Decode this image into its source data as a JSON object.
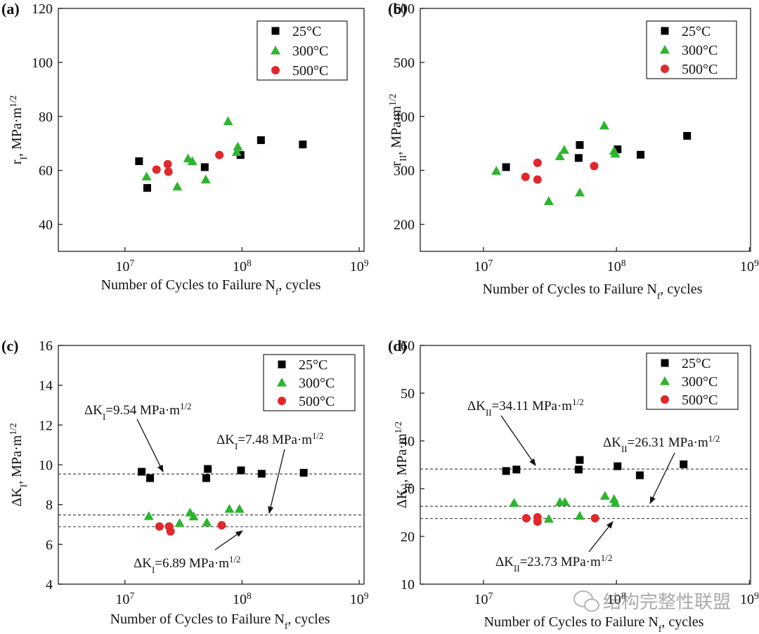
{
  "chart_data": [
    {
      "type": "scatter",
      "label": "(a)",
      "xlabel": "Number of Cycles to Failure N_{f}, cycles",
      "ylabel": "r_{I}, MPa·m^{1/2}",
      "xscale": "log",
      "xlim": [
        2700000,
        1100000000
      ],
      "ylim": [
        30,
        120
      ],
      "xticks": [
        {
          "value": 10000000,
          "label": "10^{7}"
        },
        {
          "value": 100000000,
          "label": "10^{8}"
        },
        {
          "value": 1000000000,
          "label": "10^{9}"
        }
      ],
      "yticks": [
        40,
        60,
        80,
        100,
        120
      ],
      "legend": "upper right",
      "series": [
        {
          "name": "25°C",
          "color": "#000000",
          "marker": "square",
          "x": [
            13200000,
            15500000,
            48000000,
            97000000,
            145000000,
            330000000
          ],
          "values": [
            63.4,
            53.5,
            61.2,
            65.7,
            71.2,
            69.6
          ]
        },
        {
          "name": "300°C",
          "color": "#2db52d",
          "marker": "triangle",
          "x": [
            15300000,
            28000000,
            34600000,
            37600000,
            49000000,
            76000000,
            92000000,
            90000000
          ],
          "values": [
            57.7,
            54,
            64.4,
            63.4,
            56.6,
            78.2,
            68.8,
            66.8
          ]
        },
        {
          "name": "500°C",
          "color": "#e0282d",
          "marker": "circle",
          "x": [
            18600000,
            23200000,
            23500000,
            64000000
          ],
          "values": [
            60.3,
            62.3,
            59.5,
            65.7
          ]
        }
      ]
    },
    {
      "type": "scatter",
      "label": "(b)",
      "xlabel": "Number of Cycles to Failure N_{f}, cycles",
      "ylabel": "r_{II}, MPa·m^{1/2}",
      "xscale": "log",
      "xlim": [
        3350000,
        1020000000
      ],
      "ylim": [
        150,
        600
      ],
      "xticks": [
        {
          "value": 10000000,
          "label": "10^{7}"
        },
        {
          "value": 100000000,
          "label": "10^{8}"
        },
        {
          "value": 1000000000,
          "label": "10^{9}"
        }
      ],
      "yticks": [
        200,
        300,
        400,
        500,
        600
      ],
      "legend": "upper right",
      "series": [
        {
          "name": "25°C",
          "color": "#000000",
          "marker": "square",
          "x": [
            14800000,
            53000000,
            52000000,
            102000000,
            152000000,
            340000000
          ],
          "values": [
            306,
            347,
            323,
            339,
            329,
            364
          ]
        },
        {
          "name": "300°C",
          "color": "#2db52d",
          "marker": "triangle",
          "x": [
            12500000,
            31000000,
            37600000,
            40500000,
            53000000,
            81000000,
            96000000,
            98000000
          ],
          "values": [
            299,
            243,
            326,
            338,
            259,
            383,
            336,
            331
          ]
        },
        {
          "name": "500°C",
          "color": "#e0282d",
          "marker": "circle",
          "x": [
            20700000,
            25500000,
            25500000,
            68000000
          ],
          "values": [
            288,
            314,
            283,
            308
          ]
        }
      ]
    },
    {
      "type": "scatter",
      "label": "(c)",
      "xlabel": "Number of Cycles to Failure N_{f}, cycles",
      "ylabel": "ΔK_{I}, MPa·m^{1/2}",
      "xscale": "log",
      "xlim": [
        2700000,
        1100000000
      ],
      "ylim": [
        4,
        16
      ],
      "xticks": [
        {
          "value": 10000000,
          "label": "10^{7}"
        },
        {
          "value": 100000000,
          "label": "10^{8}"
        },
        {
          "value": 1000000000,
          "label": "10^{9}"
        }
      ],
      "yticks": [
        4,
        6,
        8,
        10,
        12,
        14,
        16
      ],
      "legend": "upper right",
      "hlines": [
        9.54,
        7.48,
        6.89
      ],
      "annotations": [
        "ΔK_{I}=9.54 MPa·m^{1/2}",
        "ΔK_{I}=7.48 MPa·m^{1/2}",
        "ΔK_{I}=6.89 MPa·m^{1/2}"
      ],
      "series": [
        {
          "name": "25°C",
          "color": "#000000",
          "marker": "square",
          "x": [
            13900000,
            16400000,
            51000000,
            49500000,
            98000000,
            147000000,
            336000000
          ],
          "values": [
            9.65,
            9.33,
            9.79,
            9.33,
            9.72,
            9.55,
            9.6
          ]
        },
        {
          "name": "300°C",
          "color": "#2db52d",
          "marker": "triangle",
          "x": [
            16000000,
            29300000,
            36000000,
            38600000,
            50000000,
            78000000,
            95000000
          ],
          "values": [
            7.42,
            7.07,
            7.6,
            7.4,
            7.1,
            7.78,
            7.78
          ]
        },
        {
          "name": "500°C",
          "color": "#e0282d",
          "marker": "circle",
          "x": [
            19700000,
            23800000,
            24500000,
            67000000
          ],
          "values": [
            6.9,
            6.9,
            6.65,
            6.96
          ]
        }
      ]
    },
    {
      "type": "scatter",
      "label": "(d)",
      "xlabel": "Number of Cycles to Failure N_{f}, cycles",
      "ylabel": "ΔK_{II}, MPa·m^{1/2}",
      "xscale": "log",
      "xlim": [
        3350000,
        1020000000
      ],
      "ylim": [
        10,
        60
      ],
      "xticks": [
        {
          "value": 10000000,
          "label": "10^{7}"
        },
        {
          "value": 100000000,
          "label": "10^{8}"
        },
        {
          "value": 1000000000,
          "label": "10^{9}"
        }
      ],
      "yticks": [
        10,
        20,
        30,
        40,
        50,
        60
      ],
      "legend": "upper right",
      "hlines": [
        34.11,
        26.31,
        23.73
      ],
      "annotations": [
        "ΔK_{II}=34.11 MPa·m^{1/2}",
        "ΔK_{II}=26.31 MPa·m^{1/2}",
        "ΔK_{II}=23.73 MPa·m^{1/2}"
      ],
      "series": [
        {
          "name": "25°C",
          "color": "#000000",
          "marker": "square",
          "x": [
            14800000,
            17700000,
            53000000,
            52000000,
            102000000,
            150000000,
            320000000
          ],
          "values": [
            33.7,
            34,
            36,
            34,
            34.7,
            32.8,
            35.1
          ]
        },
        {
          "name": "300°C",
          "color": "#2db52d",
          "marker": "triangle",
          "x": [
            17000000,
            31000000,
            37600000,
            41000000,
            53000000,
            82000000,
            96000000,
            98000000
          ],
          "values": [
            27,
            23.7,
            27.2,
            27.2,
            24.3,
            28.5,
            27.8,
            27
          ]
        },
        {
          "name": "500°C",
          "color": "#e0282d",
          "marker": "circle",
          "x": [
            21000000,
            25500000,
            25500000,
            69000000
          ],
          "values": [
            23.8,
            24,
            23.1,
            23.8
          ]
        }
      ]
    }
  ],
  "watermark": "结构完整性联盟"
}
